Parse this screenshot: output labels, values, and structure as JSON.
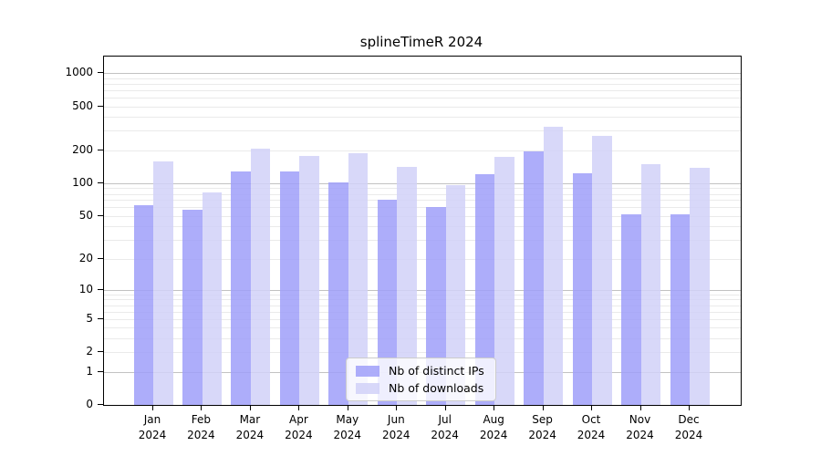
{
  "figure": {
    "title": "splineTimeR 2024"
  },
  "chart_data": {
    "type": "bar",
    "title": "splineTimeR 2024",
    "categories": [
      "Jan",
      "Feb",
      "Mar",
      "Apr",
      "May",
      "Jun",
      "Jul",
      "Aug",
      "Sep",
      "Oct",
      "Nov",
      "Dec"
    ],
    "category_year": "2024",
    "series": [
      {
        "name": "Nb of distinct IPs",
        "color": "#9f9ff9",
        "values": [
          63,
          57,
          127,
          128,
          102,
          70,
          61,
          120,
          196,
          124,
          52,
          52
        ]
      },
      {
        "name": "Nb of downloads",
        "color": "#d1d1f8",
        "values": [
          158,
          82,
          206,
          178,
          186,
          140,
          96,
          175,
          328,
          270,
          148,
          137
        ]
      }
    ],
    "y_axis": {
      "scale": "log10(value+1)",
      "tick_values": [
        0,
        1,
        2,
        5,
        10,
        20,
        50,
        100,
        200,
        500,
        1000
      ],
      "major_gridlines": [
        1,
        10,
        100,
        1000
      ],
      "minor_gridline_decades": [
        0,
        1,
        2
      ],
      "top_value_approx": 1390
    },
    "x_axis": {
      "label_format": "month over year, two lines"
    },
    "legend": {
      "position": "bottom-center-inside",
      "entries": [
        "Nb of distinct IPs",
        "Nb of downloads"
      ]
    },
    "colors": {
      "grid_major": "#c2c2c2",
      "grid_minor": "#eaeaea",
      "axis": "#000000",
      "background": "#ffffff"
    }
  }
}
